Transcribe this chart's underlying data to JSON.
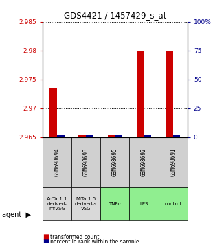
{
  "title": "GDS4421 / 1457429_s_at",
  "samples": [
    "GSM698694",
    "GSM698693",
    "GSM698695",
    "GSM698692",
    "GSM698691"
  ],
  "agents": [
    "AnTat1.1\nderived-\nmfVSG",
    "MiTat1.5\nderived-s\nVSG",
    "TNFα",
    "LPS",
    "control"
  ],
  "agent_colors": [
    "#d9d9d9",
    "#d9d9d9",
    "#90EE90",
    "#90EE90",
    "#90EE90"
  ],
  "red_values": [
    2.9735,
    2.9655,
    2.9655,
    2.98,
    2.98
  ],
  "blue_values": [
    1.5,
    1.5,
    1.5,
    1.5,
    1.5
  ],
  "ylim_left": [
    2.965,
    2.985
  ],
  "ylim_right": [
    0,
    100
  ],
  "yticks_left": [
    2.965,
    2.97,
    2.975,
    2.98,
    2.985
  ],
  "yticks_right": [
    0,
    25,
    50,
    75,
    100
  ],
  "ytick_labels_left": [
    "2.965",
    "2.97",
    "2.975",
    "2.98",
    "2.985"
  ],
  "ytick_labels_right": [
    "0",
    "25",
    "50",
    "75",
    "100%"
  ],
  "red_color": "#cc0000",
  "blue_color": "#00008B",
  "legend_red": "transformed count",
  "legend_blue": "percentile rank within the sample",
  "agent_label": "agent"
}
